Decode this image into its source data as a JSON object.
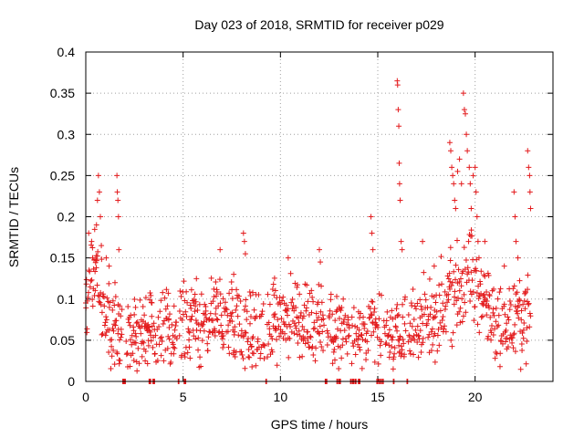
{
  "chart_data": {
    "type": "scatter",
    "title": "Day 023 of 2018, SRMTID for receiver p029",
    "xlabel": "GPS time / hours",
    "ylabel": "SRMTID / TECUs",
    "xlim": [
      0,
      24
    ],
    "ylim": [
      0,
      0.4
    ],
    "xticks": [
      0,
      5,
      10,
      15,
      20
    ],
    "yticks": [
      0,
      0.05,
      0.1,
      0.15,
      0.2,
      0.25,
      0.3,
      0.35,
      0.4
    ],
    "xtick_labels": [
      "0",
      "5",
      "10",
      "15",
      "20"
    ],
    "ytick_labels": [
      "0",
      "0.05",
      "0.1",
      "0.15",
      "0.2",
      "0.25",
      "0.3",
      "0.35",
      "0.4"
    ],
    "grid": true,
    "marker": "+",
    "series": [
      {
        "name": "SRMTID",
        "color": "#e31a1c",
        "baseline_profile": {
          "hours": [
            0,
            0.5,
            1,
            1.5,
            2,
            3,
            4,
            5,
            6,
            7,
            8,
            9,
            10,
            11,
            12,
            13,
            14,
            15,
            16,
            17,
            18,
            19,
            20,
            21,
            22,
            22.8
          ],
          "median": [
            0.09,
            0.13,
            0.08,
            0.06,
            0.05,
            0.06,
            0.06,
            0.07,
            0.07,
            0.08,
            0.07,
            0.06,
            0.08,
            0.07,
            0.07,
            0.06,
            0.05,
            0.06,
            0.05,
            0.07,
            0.08,
            0.11,
            0.12,
            0.07,
            0.07,
            0.09
          ]
        },
        "high_values": [
          {
            "x": 0.15,
            "y": 0.18
          },
          {
            "x": 0.3,
            "y": 0.17
          },
          {
            "x": 0.35,
            "y": 0.15
          },
          {
            "x": 0.55,
            "y": 0.19
          },
          {
            "x": 0.6,
            "y": 0.22
          },
          {
            "x": 0.65,
            "y": 0.25
          },
          {
            "x": 0.7,
            "y": 0.23
          },
          {
            "x": 0.75,
            "y": 0.2
          },
          {
            "x": 0.8,
            "y": 0.165
          },
          {
            "x": 1.05,
            "y": 0.15
          },
          {
            "x": 1.2,
            "y": 0.14
          },
          {
            "x": 1.5,
            "y": 0.12
          },
          {
            "x": 1.6,
            "y": 0.25
          },
          {
            "x": 1.62,
            "y": 0.23
          },
          {
            "x": 1.65,
            "y": 0.22
          },
          {
            "x": 1.68,
            "y": 0.2
          },
          {
            "x": 1.7,
            "y": 0.16
          },
          {
            "x": 6.9,
            "y": 0.16
          },
          {
            "x": 7.6,
            "y": 0.13
          },
          {
            "x": 8.1,
            "y": 0.18
          },
          {
            "x": 8.15,
            "y": 0.17
          },
          {
            "x": 8.2,
            "y": 0.155
          },
          {
            "x": 10.4,
            "y": 0.15
          },
          {
            "x": 12.0,
            "y": 0.16
          },
          {
            "x": 12.05,
            "y": 0.145
          },
          {
            "x": 14.65,
            "y": 0.2
          },
          {
            "x": 14.7,
            "y": 0.18
          },
          {
            "x": 14.75,
            "y": 0.16
          },
          {
            "x": 16.0,
            "y": 0.365
          },
          {
            "x": 16.02,
            "y": 0.36
          },
          {
            "x": 16.05,
            "y": 0.33
          },
          {
            "x": 16.08,
            "y": 0.31
          },
          {
            "x": 16.1,
            "y": 0.265
          },
          {
            "x": 16.12,
            "y": 0.24
          },
          {
            "x": 16.15,
            "y": 0.22
          },
          {
            "x": 16.2,
            "y": 0.17
          },
          {
            "x": 16.25,
            "y": 0.16
          },
          {
            "x": 17.3,
            "y": 0.17
          },
          {
            "x": 17.9,
            "y": 0.14
          },
          {
            "x": 18.7,
            "y": 0.29
          },
          {
            "x": 18.75,
            "y": 0.28
          },
          {
            "x": 18.8,
            "y": 0.26
          },
          {
            "x": 18.85,
            "y": 0.25
          },
          {
            "x": 18.9,
            "y": 0.24
          },
          {
            "x": 18.95,
            "y": 0.22
          },
          {
            "x": 19.0,
            "y": 0.21
          },
          {
            "x": 19.1,
            "y": 0.255
          },
          {
            "x": 19.2,
            "y": 0.27
          },
          {
            "x": 19.3,
            "y": 0.24
          },
          {
            "x": 19.4,
            "y": 0.35
          },
          {
            "x": 19.45,
            "y": 0.33
          },
          {
            "x": 19.5,
            "y": 0.325
          },
          {
            "x": 19.55,
            "y": 0.3
          },
          {
            "x": 19.6,
            "y": 0.28
          },
          {
            "x": 19.7,
            "y": 0.26
          },
          {
            "x": 19.75,
            "y": 0.24
          },
          {
            "x": 19.8,
            "y": 0.21
          },
          {
            "x": 19.9,
            "y": 0.25
          },
          {
            "x": 20.0,
            "y": 0.26
          },
          {
            "x": 20.05,
            "y": 0.23
          },
          {
            "x": 20.1,
            "y": 0.2
          },
          {
            "x": 20.15,
            "y": 0.17
          },
          {
            "x": 20.2,
            "y": 0.15
          },
          {
            "x": 20.5,
            "y": 0.17
          },
          {
            "x": 21.5,
            "y": 0.14
          },
          {
            "x": 22.0,
            "y": 0.23
          },
          {
            "x": 22.05,
            "y": 0.2
          },
          {
            "x": 22.1,
            "y": 0.17
          },
          {
            "x": 22.2,
            "y": 0.15
          },
          {
            "x": 22.7,
            "y": 0.28
          },
          {
            "x": 22.75,
            "y": 0.26
          },
          {
            "x": 22.8,
            "y": 0.25
          },
          {
            "x": 22.82,
            "y": 0.23
          },
          {
            "x": 22.85,
            "y": 0.21
          }
        ],
        "zero_values_hours": [
          1.9,
          1.95,
          2.0,
          3.25,
          3.3,
          3.45,
          3.5,
          4.75,
          5.05,
          5.1,
          9.25,
          12.3,
          12.35,
          12.9,
          13.0,
          13.05,
          13.6,
          13.7,
          13.75,
          13.85,
          14.0,
          14.05,
          14.95,
          15.05,
          15.15,
          15.25,
          15.8,
          16.5
        ]
      }
    ]
  }
}
